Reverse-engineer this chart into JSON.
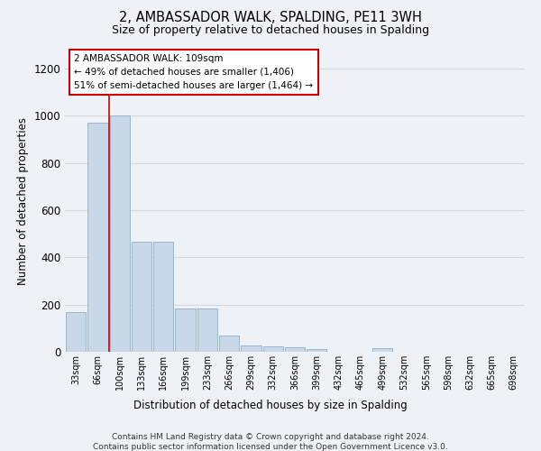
{
  "title": "2, AMBASSADOR WALK, SPALDING, PE11 3WH",
  "subtitle": "Size of property relative to detached houses in Spalding",
  "xlabel": "Distribution of detached houses by size in Spalding",
  "ylabel": "Number of detached properties",
  "footer_line1": "Contains HM Land Registry data © Crown copyright and database right 2024.",
  "footer_line2": "Contains public sector information licensed under the Open Government Licence v3.0.",
  "annotation_title": "2 AMBASSADOR WALK: 109sqm",
  "annotation_line2": "← 49% of detached houses are smaller (1,406)",
  "annotation_line3": "51% of semi-detached houses are larger (1,464) →",
  "bar_color": "#c8d8e8",
  "bar_edge_color": "#8ab0cc",
  "vline_color": "#cc0000",
  "annotation_box_edge": "#cc0000",
  "grid_color": "#d0d8e0",
  "background_color": "#eef2f7",
  "categories": [
    "33sqm",
    "66sqm",
    "100sqm",
    "133sqm",
    "166sqm",
    "199sqm",
    "233sqm",
    "266sqm",
    "299sqm",
    "332sqm",
    "366sqm",
    "399sqm",
    "432sqm",
    "465sqm",
    "499sqm",
    "532sqm",
    "565sqm",
    "598sqm",
    "632sqm",
    "665sqm",
    "698sqm"
  ],
  "values": [
    170,
    970,
    1000,
    465,
    465,
    185,
    185,
    70,
    28,
    22,
    20,
    12,
    0,
    0,
    15,
    0,
    0,
    0,
    0,
    0,
    0
  ],
  "vline_x_index": 2,
  "ylim": [
    0,
    1280
  ],
  "yticks": [
    0,
    200,
    400,
    600,
    800,
    1000,
    1200
  ]
}
